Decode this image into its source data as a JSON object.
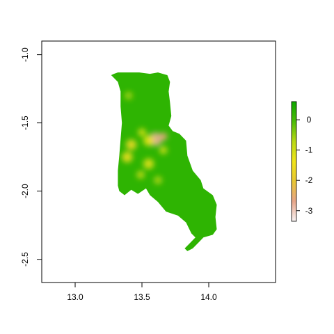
{
  "chart_data": {
    "type": "heatmap",
    "title": "",
    "xlabel": "",
    "ylabel": "",
    "xlim": [
      12.75,
      14.5
    ],
    "ylim": [
      -2.67,
      -0.9
    ],
    "x_ticks": [
      {
        "value": 13.0,
        "label": "13.0"
      },
      {
        "value": 13.5,
        "label": "13.5"
      },
      {
        "value": 14.0,
        "label": "14.0"
      }
    ],
    "y_ticks": [
      {
        "value": -1.0,
        "label": "-1.0"
      },
      {
        "value": -1.5,
        "label": "-1.5"
      },
      {
        "value": -2.0,
        "label": "-2.0"
      },
      {
        "value": -2.5,
        "label": "-2.5"
      }
    ],
    "colorbar": {
      "min": -3.35,
      "max": 0.6,
      "ticks": [
        {
          "value": 0,
          "label": "0"
        },
        {
          "value": -1,
          "label": "-1"
        },
        {
          "value": -2,
          "label": "-2"
        },
        {
          "value": -3,
          "label": "-3"
        }
      ],
      "colors": [
        "#f7f2f2",
        "#e7a589",
        "#e8c632",
        "#f0e51a",
        "#b9d915",
        "#4cbc07",
        "#0ea700"
      ]
    },
    "region_outline": [
      [
        13.29,
        -1.14
      ],
      [
        13.32,
        -1.13
      ],
      [
        13.4,
        -1.13
      ],
      [
        13.48,
        -1.13
      ],
      [
        13.56,
        -1.14
      ],
      [
        13.62,
        -1.13
      ],
      [
        13.69,
        -1.15
      ],
      [
        13.71,
        -1.2
      ],
      [
        13.7,
        -1.27
      ],
      [
        13.71,
        -1.35
      ],
      [
        13.72,
        -1.45
      ],
      [
        13.7,
        -1.52
      ],
      [
        13.73,
        -1.56
      ],
      [
        13.78,
        -1.58
      ],
      [
        13.83,
        -1.63
      ],
      [
        13.84,
        -1.74
      ],
      [
        13.88,
        -1.85
      ],
      [
        13.94,
        -1.92
      ],
      [
        13.96,
        -1.98
      ],
      [
        14.03,
        -2.03
      ],
      [
        14.06,
        -2.1
      ],
      [
        14.05,
        -2.19
      ],
      [
        14.06,
        -2.28
      ],
      [
        14.03,
        -2.32
      ],
      [
        13.96,
        -2.34
      ],
      [
        13.93,
        -2.37
      ],
      [
        13.88,
        -2.42
      ],
      [
        13.84,
        -2.44
      ],
      [
        13.82,
        -2.42
      ],
      [
        13.85,
        -2.39
      ],
      [
        13.9,
        -2.34
      ],
      [
        13.87,
        -2.31
      ],
      [
        13.83,
        -2.23
      ],
      [
        13.77,
        -2.18
      ],
      [
        13.68,
        -2.15
      ],
      [
        13.62,
        -2.08
      ],
      [
        13.56,
        -2.03
      ],
      [
        13.53,
        -1.98
      ],
      [
        13.47,
        -2.02
      ],
      [
        13.42,
        -1.99
      ],
      [
        13.37,
        -2.03
      ],
      [
        13.33,
        -2.0
      ],
      [
        13.32,
        -1.96
      ],
      [
        13.32,
        -1.85
      ],
      [
        13.33,
        -1.74
      ],
      [
        13.34,
        -1.62
      ],
      [
        13.35,
        -1.5
      ],
      [
        13.34,
        -1.38
      ],
      [
        13.34,
        -1.27
      ],
      [
        13.32,
        -1.2
      ],
      [
        13.27,
        -1.15
      ]
    ],
    "low_value_areas": [
      {
        "x": 13.6,
        "y": -1.62,
        "r": 0.05,
        "value": -2.8
      },
      {
        "x": 13.66,
        "y": -1.6,
        "r": 0.03,
        "value": -2.6
      },
      {
        "x": 13.42,
        "y": -1.66,
        "r": 0.04,
        "value": -1.6
      },
      {
        "x": 13.39,
        "y": -1.75,
        "r": 0.04,
        "value": -1.5
      },
      {
        "x": 13.55,
        "y": -1.63,
        "r": 0.04,
        "value": -1.3
      },
      {
        "x": 13.5,
        "y": -1.57,
        "r": 0.03,
        "value": -1.1
      },
      {
        "x": 13.55,
        "y": -1.8,
        "r": 0.04,
        "value": -1.2
      },
      {
        "x": 13.49,
        "y": -1.88,
        "r": 0.03,
        "value": -0.9
      },
      {
        "x": 13.66,
        "y": -1.7,
        "r": 0.03,
        "value": -1.0
      },
      {
        "x": 13.4,
        "y": -1.3,
        "r": 0.03,
        "value": -0.6
      },
      {
        "x": 13.62,
        "y": -1.92,
        "r": 0.03,
        "value": -0.7
      }
    ]
  }
}
